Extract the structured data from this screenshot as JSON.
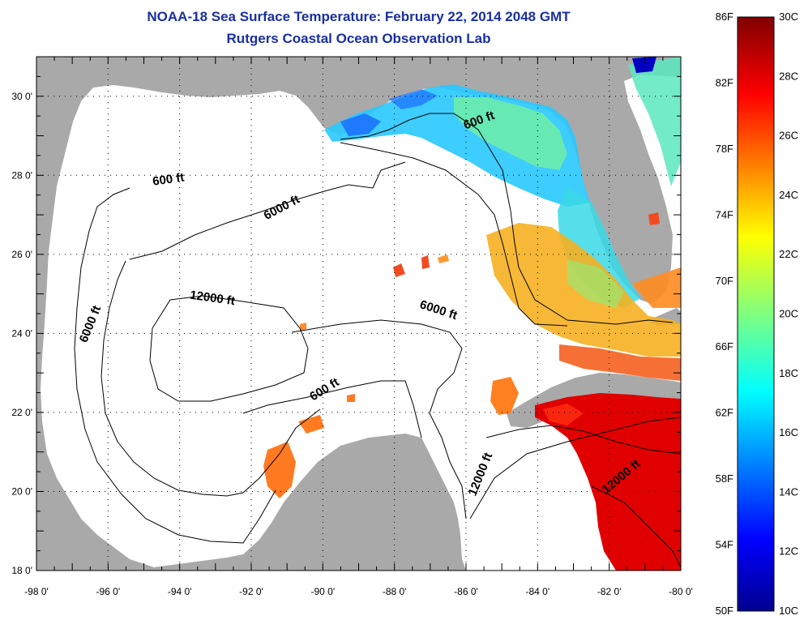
{
  "title_line1": "NOAA-18 Sea Surface Temperature:  February 22, 2014 2048 GMT",
  "title_line2": "Rutgers Coastal Ocean Observation Lab",
  "map": {
    "lon_range": [
      -98,
      -80
    ],
    "lat_range": [
      18,
      31
    ],
    "lon_ticks": [
      -98,
      -96,
      -94,
      -92,
      -90,
      -88,
      -86,
      -84,
      -82,
      -80
    ],
    "lat_ticks": [
      18,
      20,
      22,
      24,
      26,
      28,
      30
    ],
    "lon_tick_labels": [
      "-98 0'",
      "-96 0'",
      "-94 0'",
      "-92 0'",
      "-90 0'",
      "-88 0'",
      "-86 0'",
      "-84 0'",
      "-82 0'",
      "-80 0'"
    ],
    "lat_tick_labels": [
      "18 0'",
      "20 0'",
      "22 0'",
      "24 0'",
      "26 0'",
      "28 0'",
      "30 0'"
    ],
    "land_color": "#a9a9a9",
    "water_color": "#ffffff",
    "contour_labels": [
      {
        "text": "600 ft",
        "lon": -85.6,
        "lat": 29.3,
        "angle": -20
      },
      {
        "text": "600 ft",
        "lon": -94.3,
        "lat": 27.8,
        "angle": -8
      },
      {
        "text": "6000 ft",
        "lon": -91.1,
        "lat": 27.1,
        "angle": -28
      },
      {
        "text": "12000 ft",
        "lon": -93.1,
        "lat": 24.8,
        "angle": 8
      },
      {
        "text": "6000 ft",
        "lon": -86.8,
        "lat": 24.5,
        "angle": 18
      },
      {
        "text": "6000 ft",
        "lon": -96.4,
        "lat": 24.2,
        "angle": -68
      },
      {
        "text": "600 ft",
        "lon": -89.9,
        "lat": 22.5,
        "angle": -32
      },
      {
        "text": "12000 ft",
        "lon": -85.5,
        "lat": 20.4,
        "angle": -68
      },
      {
        "text": "12000 ft",
        "lon": -81.6,
        "lat": 20.3,
        "angle": -40
      }
    ]
  },
  "colorbar": {
    "f_labels": [
      "86F",
      "82F",
      "78F",
      "74F",
      "70F",
      "66F",
      "62F",
      "58F",
      "54F",
      "50F"
    ],
    "c_labels": [
      "30C",
      "28C",
      "26C",
      "24C",
      "22C",
      "20C",
      "18C",
      "16C",
      "14C",
      "12C",
      "10C"
    ],
    "range_c": [
      10,
      30
    ],
    "colormap": "jet"
  },
  "colors": {
    "title": "#1a2fa0",
    "cold": "#00008f",
    "cool": "#00bfff",
    "mild": "#7fff7f",
    "warm": "#ffa500",
    "hot": "#e00000",
    "hottest": "#800000"
  }
}
